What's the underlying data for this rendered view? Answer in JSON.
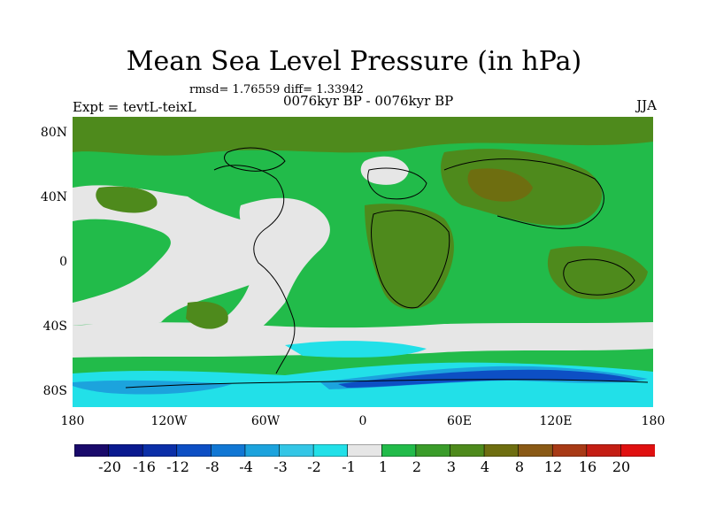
{
  "figure": {
    "title": "Mean Sea Level Pressure (in hPa)",
    "stats": "rmsd= 1.76559 diff= 1.33942",
    "left_label": "Expt = tevtL-teixL",
    "center_label": "0076kyr BP - 0076kyr BP",
    "right_label": "JJA"
  },
  "axes": {
    "lat_ticks": [
      "80N",
      "40N",
      "0",
      "40S",
      "80S"
    ],
    "lon_ticks": [
      "180",
      "120W",
      "60W",
      "0",
      "60E",
      "120E",
      "180"
    ]
  },
  "colorbar": {
    "labels": [
      "-20",
      "-16",
      "-12",
      "-8",
      "-4",
      "-3",
      "-2",
      "-1",
      "1",
      "2",
      "3",
      "4",
      "8",
      "12",
      "16",
      "20"
    ],
    "colors": [
      "#1a0a6b",
      "#0a1a8f",
      "#0b2fa8",
      "#0d4fc4",
      "#1177d4",
      "#1ca3dd",
      "#33c6e6",
      "#22e0e8",
      "#e6e6e6",
      "#22bb4a",
      "#3a9c2a",
      "#4e8a1c",
      "#6e6e10",
      "#8a5a16",
      "#a83a16",
      "#c41e14",
      "#e01010"
    ]
  },
  "colors": {
    "ocean_base": "#22bb4a",
    "land_high": "#4e8a1c",
    "neutral": "#e6e6e6",
    "low_cyan": "#22e0e8",
    "low_blue": "#1ca3dd",
    "deep_blue": "#0d4fc4"
  }
}
